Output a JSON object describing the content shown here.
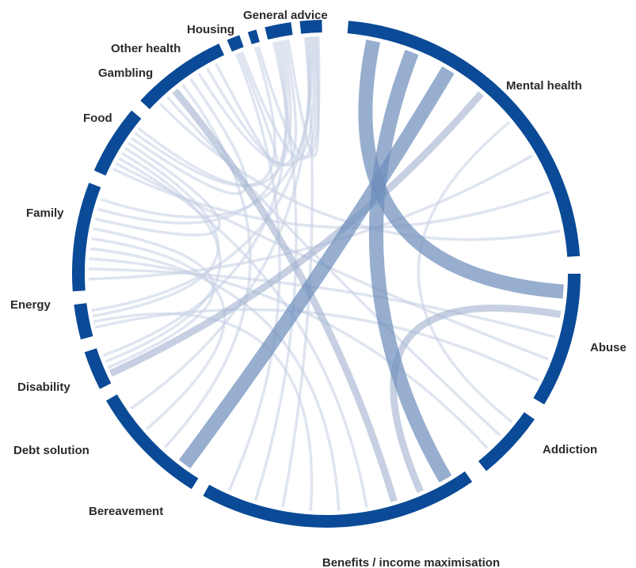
{
  "diagram": {
    "type": "chord",
    "colors": {
      "segment": "#0a4a96",
      "ribbon_light": "#c5d0e3",
      "ribbon_mid": "#a3b3d1",
      "ribbon_dark": "#6f8fbd",
      "label": "#2b2b2b"
    },
    "segments": [
      {
        "id": "mental_health",
        "label": "Mental health"
      },
      {
        "id": "abuse",
        "label": "Abuse"
      },
      {
        "id": "addiction",
        "label": "Addiction"
      },
      {
        "id": "benefits",
        "label": "Benefits / income maximisation"
      },
      {
        "id": "bereavement",
        "label": "Bereavement"
      },
      {
        "id": "debt_solution",
        "label": "Debt solution"
      },
      {
        "id": "disability",
        "label": "Disability"
      },
      {
        "id": "energy",
        "label": "Energy"
      },
      {
        "id": "family",
        "label": "Family"
      },
      {
        "id": "food",
        "label": "Food"
      },
      {
        "id": "gambling",
        "label": "Gambling"
      },
      {
        "id": "other_health",
        "label": "Other health"
      },
      {
        "id": "housing",
        "label": "Housing"
      },
      {
        "id": "general_advice",
        "label": "General advice"
      }
    ],
    "links": [
      {
        "source": "mental_health",
        "target": "abuse",
        "weight": "heavy"
      },
      {
        "source": "mental_health",
        "target": "benefits",
        "weight": "heavy"
      },
      {
        "source": "mental_health",
        "target": "bereavement",
        "weight": "heavy"
      },
      {
        "source": "mental_health",
        "target": "debt_solution",
        "weight": "medium"
      },
      {
        "source": "mental_health",
        "target": "addiction",
        "weight": "light"
      },
      {
        "source": "mental_health",
        "target": "energy",
        "weight": "light"
      },
      {
        "source": "mental_health",
        "target": "family",
        "weight": "light"
      },
      {
        "source": "mental_health",
        "target": "food",
        "weight": "light"
      },
      {
        "source": "abuse",
        "target": "benefits",
        "weight": "medium"
      },
      {
        "source": "abuse",
        "target": "energy",
        "weight": "light"
      },
      {
        "source": "abuse",
        "target": "family",
        "weight": "light"
      },
      {
        "source": "abuse",
        "target": "disability",
        "weight": "light"
      },
      {
        "source": "addiction",
        "target": "food",
        "weight": "light"
      },
      {
        "source": "addiction",
        "target": "energy",
        "weight": "light"
      },
      {
        "source": "benefits",
        "target": "food",
        "weight": "medium"
      },
      {
        "source": "benefits",
        "target": "family",
        "weight": "light"
      },
      {
        "source": "benefits",
        "target": "energy",
        "weight": "light"
      },
      {
        "source": "benefits",
        "target": "disability",
        "weight": "light"
      },
      {
        "source": "benefits",
        "target": "general_advice",
        "weight": "light"
      },
      {
        "source": "benefits",
        "target": "housing",
        "weight": "light"
      },
      {
        "source": "benefits",
        "target": "gambling",
        "weight": "light"
      },
      {
        "source": "bereavement",
        "target": "food",
        "weight": "light"
      },
      {
        "source": "bereavement",
        "target": "energy",
        "weight": "light"
      },
      {
        "source": "bereavement",
        "target": "general_advice",
        "weight": "light"
      },
      {
        "source": "debt_solution",
        "target": "energy",
        "weight": "light"
      },
      {
        "source": "debt_solution",
        "target": "family",
        "weight": "light"
      },
      {
        "source": "debt_solution",
        "target": "housing",
        "weight": "light"
      },
      {
        "source": "disability",
        "target": "family",
        "weight": "light"
      },
      {
        "source": "disability",
        "target": "general_advice",
        "weight": "light"
      },
      {
        "source": "energy",
        "target": "family",
        "weight": "light"
      },
      {
        "source": "energy",
        "target": "housing",
        "weight": "light"
      },
      {
        "source": "energy",
        "target": "general_advice",
        "weight": "light"
      },
      {
        "source": "family",
        "target": "food",
        "weight": "light"
      },
      {
        "source": "family",
        "target": "housing",
        "weight": "light"
      },
      {
        "source": "family",
        "target": "other_health",
        "weight": "light"
      },
      {
        "source": "food",
        "target": "general_advice",
        "weight": "light"
      },
      {
        "source": "food",
        "target": "housing",
        "weight": "light"
      },
      {
        "source": "food",
        "target": "gambling",
        "weight": "light"
      },
      {
        "source": "gambling",
        "target": "general_advice",
        "weight": "light"
      },
      {
        "source": "housing",
        "target": "general_advice",
        "weight": "light"
      },
      {
        "source": "other_health",
        "target": "general_advice",
        "weight": "light"
      }
    ]
  }
}
